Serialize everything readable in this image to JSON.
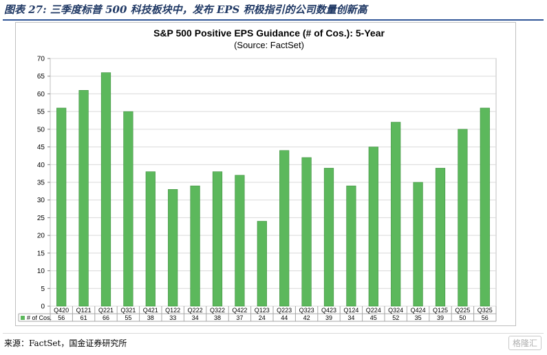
{
  "figure": {
    "caption": "图表 27: 三季度标普 500 科技板块中，发布 EPS 积极指引的公司数量创新高",
    "source": "来源：FactSet，国金证券研究所",
    "watermark": "格隆汇"
  },
  "chart_data": {
    "type": "bar",
    "title": "S&P 500 Positive EPS Guidance (# of Cos.): 5-Year",
    "subtitle": "(Source: FactSet)",
    "categories": [
      "Q420",
      "Q121",
      "Q221",
      "Q321",
      "Q421",
      "Q122",
      "Q222",
      "Q322",
      "Q422",
      "Q123",
      "Q223",
      "Q323",
      "Q423",
      "Q124",
      "Q224",
      "Q324",
      "Q424",
      "Q125",
      "Q225",
      "Q325"
    ],
    "series": [
      {
        "name": "# of Cos.",
        "values": [
          56,
          61,
          66,
          55,
          38,
          33,
          34,
          38,
          37,
          24,
          44,
          42,
          39,
          34,
          45,
          52,
          35,
          39,
          50,
          56
        ]
      }
    ],
    "ylim": [
      0,
      70
    ],
    "yticks": [
      0,
      5,
      10,
      15,
      20,
      25,
      30,
      35,
      40,
      45,
      50,
      55,
      60,
      65,
      70
    ],
    "grid": true,
    "data_table": true,
    "colors": {
      "bar": "#5cb85c",
      "bar_edge": "#3f8f3f",
      "grid": "#d9d9d9",
      "legend_key": "#5cb85c"
    }
  }
}
